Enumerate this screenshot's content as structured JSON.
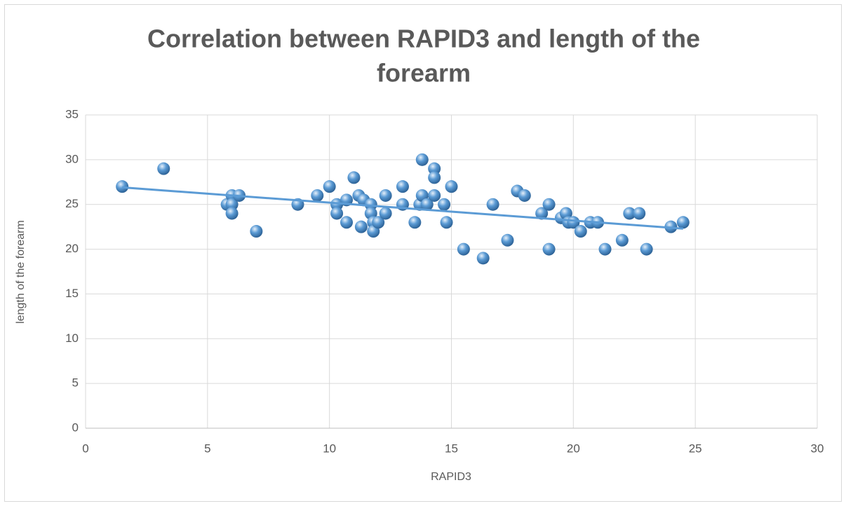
{
  "chart_data": {
    "type": "scatter",
    "title": [
      "Correlation between RAPID3 and length of the",
      "forearm"
    ],
    "x_label": "RAPID3",
    "y_label": "length of the forearm",
    "color": "#5b9bd5",
    "trendline": "linear",
    "grid": true,
    "xlim": [
      0,
      30
    ],
    "xticks": [
      0,
      5,
      10,
      15,
      20,
      25,
      30
    ],
    "ylim": [
      0,
      35
    ],
    "yticks": [
      0,
      5,
      10,
      15,
      20,
      25,
      30,
      35
    ],
    "x": [
      1.5,
      3.2,
      5.8,
      6,
      6,
      6,
      6.3,
      7,
      8.7,
      9.5,
      10,
      10.3,
      10.3,
      10.7,
      10.7,
      11,
      11.2,
      11.3,
      11.4,
      11.7,
      11.7,
      11.8,
      11.8,
      12,
      12.3,
      12.3,
      13,
      13,
      13.5,
      13.7,
      13.8,
      13.8,
      14,
      14.3,
      14.3,
      14.3,
      14.7,
      14.8,
      15,
      15.5,
      16.3,
      16.7,
      17.3,
      17.7,
      18,
      18.7,
      19,
      19,
      19.5,
      19.7,
      19.8,
      20,
      20.3,
      20.7,
      21,
      21.3,
      22,
      22.3,
      22.7,
      23,
      24,
      24.5
    ],
    "values": [
      27,
      29,
      25,
      26,
      25,
      24,
      26,
      22,
      25,
      26,
      27,
      25,
      24,
      23,
      25.5,
      28,
      26,
      22.5,
      25.5,
      25,
      24,
      23,
      22,
      23,
      26,
      24,
      27,
      25,
      23,
      25,
      30,
      26,
      25,
      29,
      28,
      26,
      25,
      23,
      27,
      20,
      19,
      25,
      21,
      26.5,
      26,
      24,
      25,
      20,
      23.5,
      24,
      23,
      23,
      22,
      23,
      23,
      20,
      21,
      24,
      24,
      20,
      22.5,
      23
    ]
  }
}
